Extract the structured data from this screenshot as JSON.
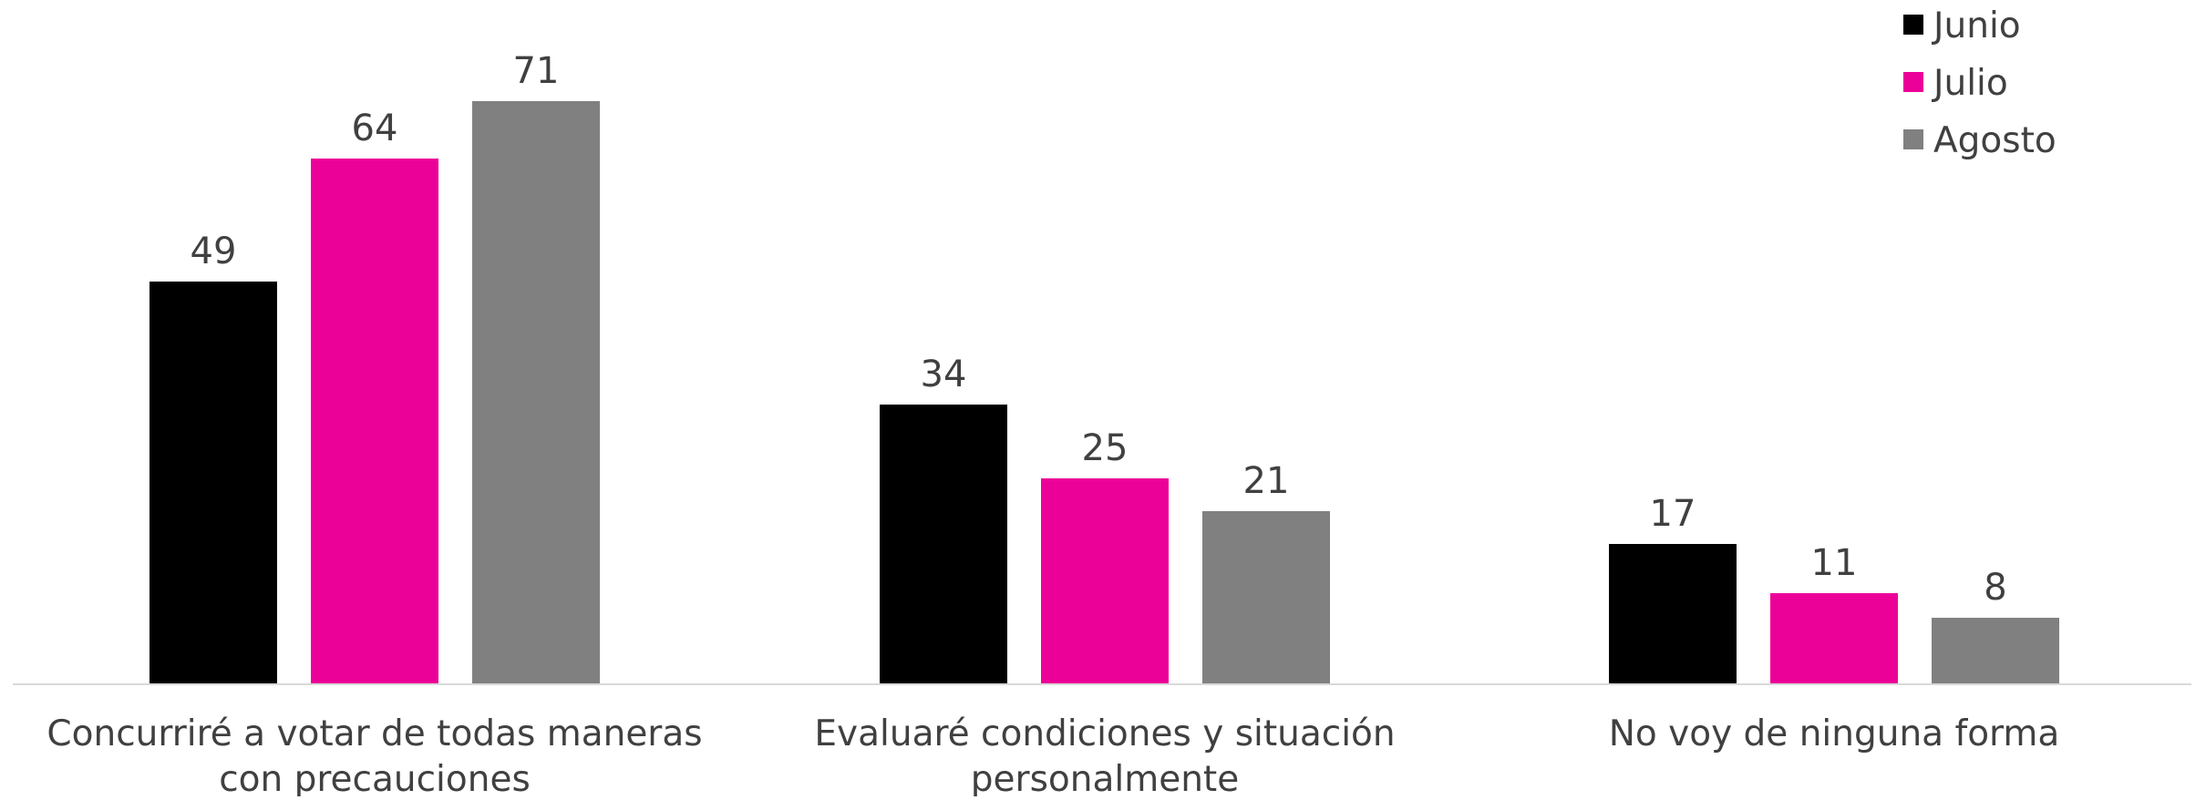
{
  "chart_data": {
    "type": "bar",
    "categories": [
      [
        "Concurriré a votar de todas maneras",
        "con precauciones"
      ],
      [
        "Evaluaré condiciones y situación",
        "personalmente"
      ],
      [
        "No voy de ninguna forma"
      ]
    ],
    "series": [
      {
        "name": "Junio",
        "color": "#000000",
        "values": [
          49,
          34,
          17
        ]
      },
      {
        "name": "Julio",
        "color": "#EC0198",
        "values": [
          64,
          25,
          11
        ]
      },
      {
        "name": "Agosto",
        "color": "#808080",
        "values": [
          71,
          21,
          8
        ]
      }
    ],
    "ylim": [
      0,
      71
    ],
    "grid": false,
    "legend_position": "top-right",
    "show_data_labels": true,
    "axis_color": "#D9D9D9",
    "text_color": "#404040"
  }
}
